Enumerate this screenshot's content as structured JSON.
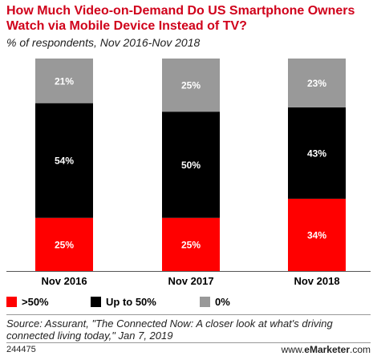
{
  "header": {
    "title": "How Much Video-on-Demand Do US Smartphone Owners Watch via Mobile Device Instead of TV?",
    "subtitle": "% of respondents, Nov 2016-Nov 2018"
  },
  "chart_data": {
    "type": "bar",
    "stacked": true,
    "categories": [
      "Nov 2016",
      "Nov 2017",
      "Nov 2018"
    ],
    "series": [
      {
        "name": ">50%",
        "values": [
          25,
          25,
          34
        ],
        "labels": [
          "25%",
          "25%",
          "34%"
        ],
        "color": "#ff0000",
        "label_color": "#ffffff"
      },
      {
        "name": "Up to 50%",
        "values": [
          54,
          50,
          43
        ],
        "labels": [
          "54%",
          "50%",
          "43%"
        ],
        "color": "#000000",
        "label_color": "#ffffff"
      },
      {
        "name": "0%",
        "values": [
          21,
          25,
          23
        ],
        "labels": [
          "21%",
          "25%",
          "23%"
        ],
        "color": "#999999",
        "label_color": "#ffffff"
      }
    ],
    "ylim": [
      0,
      100
    ],
    "legend_position": "bottom",
    "grid": false
  },
  "footer": {
    "source_lines": [
      "Source: Assurant, \"The Connected Now: A closer look at what's driving",
      "connected living today,\" Jan 7, 2019"
    ],
    "chart_id": "244475",
    "brand_prefix": "www.",
    "brand_name": "eMarketer",
    "brand_suffix": ".com"
  }
}
